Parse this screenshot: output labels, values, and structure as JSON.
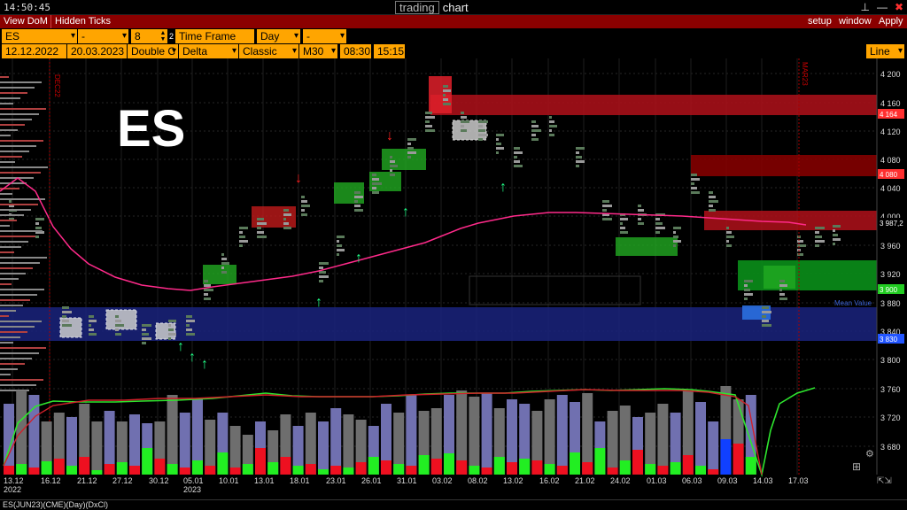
{
  "titlebar": {
    "clock": "14:50:45",
    "brand_box": "trading",
    "brand_word": "chart",
    "pin_icon": "⊥",
    "minimize_icon": "—",
    "close_icon": "✖"
  },
  "menubar": {
    "tabs": [
      "View DoM",
      "Hidden Ticks"
    ],
    "right": [
      "setup",
      "window",
      "Apply"
    ]
  },
  "toolbar1": {
    "symbol": "ES",
    "field2": "-",
    "number": "8",
    "flag": "2",
    "timeframe_label": "Time Frame",
    "period": "Day",
    "field7": "-"
  },
  "toolbar2": {
    "start_date": "12.12.2022",
    "end_date": "20.03.2023",
    "type1": "Double C",
    "type2": "Delta",
    "type3": "Classic",
    "bar_type": "M30",
    "time_start": "08:30",
    "time_end": "15:15",
    "chart_style": "Line"
  },
  "chart": {
    "watermark": "ES",
    "y_ticks": [
      "4 200",
      "4 160",
      "4 120",
      "4 080",
      "4 040",
      "4 000",
      "3 960",
      "3 920",
      "3 880",
      "3 840",
      "3 800",
      "3 760",
      "3 720",
      "3 680"
    ],
    "price_tags": [
      {
        "text": "4 164",
        "color": "#ff3030"
      },
      {
        "text": "4 080",
        "color": "#ff3030"
      },
      {
        "text": "3 987,2",
        "color": "#ffffff"
      },
      {
        "text": "3 900",
        "color": "#22cc22"
      },
      {
        "text": "3 830",
        "color": "#2255ff"
      }
    ],
    "x_ticks": [
      "13.12",
      "16.12",
      "21.12",
      "27.12",
      "30.12",
      "05.01",
      "10.01",
      "13.01",
      "18.01",
      "23.01",
      "26.01",
      "31.01",
      "03.02",
      "08.02",
      "13.02",
      "16.02",
      "21.02",
      "24.02",
      "01.03",
      "06.03",
      "09.03",
      "14.03",
      "17.03"
    ],
    "x_sub": [
      "2022",
      "2023"
    ],
    "contract_labels": [
      "DEC22",
      "MAR23"
    ],
    "mean_value_label": "Mean Value"
  },
  "volume": {
    "bars": [
      80,
      95,
      90,
      60,
      70,
      65,
      80,
      60,
      72,
      60,
      68,
      58,
      60,
      90,
      70,
      85,
      62,
      70,
      55,
      45,
      60,
      50,
      68,
      55,
      70,
      60,
      75,
      68,
      62,
      55,
      80,
      70,
      90,
      72,
      75,
      90,
      95,
      88,
      92,
      75,
      85,
      80,
      72,
      85,
      90,
      82,
      92,
      60,
      72,
      78,
      65,
      70,
      80,
      70,
      95,
      82,
      60,
      100,
      85,
      90
    ],
    "colored": [
      10,
      12,
      8,
      15,
      18,
      10,
      20,
      5,
      12,
      14,
      10,
      30,
      18,
      12,
      8,
      16,
      10,
      25,
      8,
      12,
      30,
      14,
      20,
      10,
      12,
      6,
      10,
      8,
      14,
      20,
      16,
      12,
      10,
      22,
      18,
      24,
      16,
      10,
      8,
      20,
      14,
      18,
      16,
      12,
      10,
      25,
      14,
      30,
      8,
      16,
      28,
      12,
      10,
      14,
      22,
      10,
      6,
      40,
      35,
      20
    ]
  }
}
